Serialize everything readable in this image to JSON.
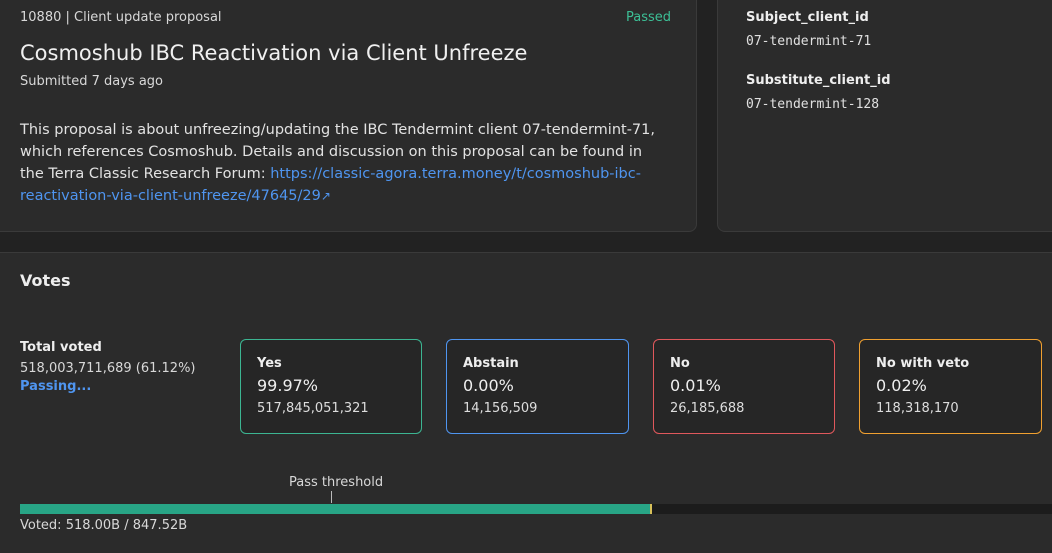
{
  "proposal": {
    "header": "10880 | Client update proposal",
    "status": "Passed",
    "title": "Cosmoshub IBC Reactivation via Client Unfreeze",
    "submitted": "Submitted 7 days ago",
    "description": "This proposal is about unfreezing/updating the IBC Tendermint client 07-tendermint-71, which references Cosmoshub. Details and discussion on this proposal can be found in the Terra Classic Research Forum: ",
    "link_text": "https://classic-agora.terra.money/t/cosmoshub-ibc-reactivation-via-client-unfreeze/47645/29",
    "link_icon": "↗"
  },
  "info": {
    "subject_label": "Subject_client_id",
    "subject_value": "07-tendermint-71",
    "substitute_label": "Substitute_client_id",
    "substitute_value": "07-tendermint-128"
  },
  "votes": {
    "title": "Votes",
    "total_label": "Total voted",
    "total_value": "518,003,711,689 (61.12%)",
    "passing": "Passing...",
    "options": [
      {
        "label": "Yes",
        "percent": "99.97%",
        "count": "517,845,051,321",
        "color": "#3cb592"
      },
      {
        "label": "Abstain",
        "percent": "0.00%",
        "count": "14,156,509",
        "color": "#4f95f0"
      },
      {
        "label": "No",
        "percent": "0.01%",
        "count": "26,185,688",
        "color": "#e0585c"
      },
      {
        "label": "No with veto",
        "percent": "0.02%",
        "count": "118,318,170",
        "color": "#f0a030"
      }
    ],
    "threshold_label": "Pass threshold",
    "voted_text": "Voted: 518.00B / 847.52B",
    "voted_fraction": 0.6112,
    "bar_color": "#28a586"
  }
}
